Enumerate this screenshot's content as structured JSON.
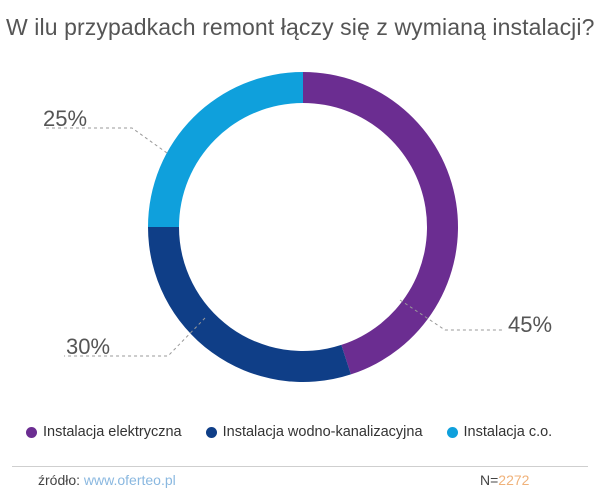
{
  "title": "W ilu przypadkach remont łączy się z wymianą instalacji?",
  "chart_data": {
    "type": "donut",
    "slices": [
      {
        "label": "Instalacja elektryczna",
        "value": 45,
        "label_text": "45%",
        "color": "#6b2d91"
      },
      {
        "label": "Instalacja wodno-kanalizacyjna",
        "value": 30,
        "label_text": "30%",
        "color": "#0f3e87"
      },
      {
        "label": "Instalacja c.o.",
        "value": 25,
        "label_text": "25%",
        "color": "#0fa0dc"
      }
    ]
  },
  "footer": {
    "source_label": "źródło:",
    "source_link": "www.oferteo.pl",
    "n_label": "N=",
    "n_value": "2272"
  }
}
